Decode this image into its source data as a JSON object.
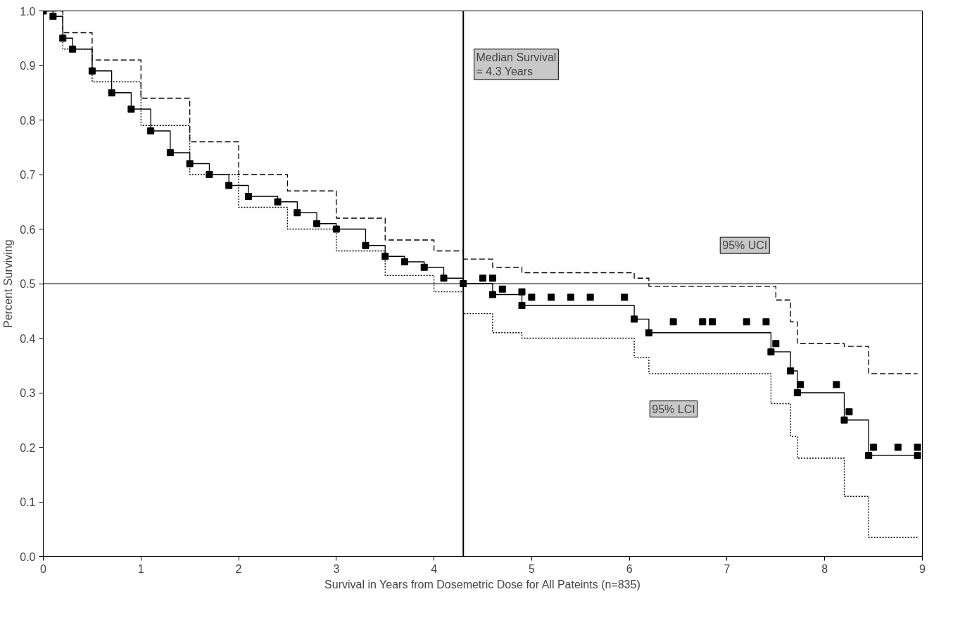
{
  "chart_data": {
    "type": "step",
    "xlabel": "Survival in Years from Dosemetric Dose for All Pateints (n=835)",
    "ylabel": "Percent Surviving",
    "xlim": [
      0,
      9
    ],
    "ylim": [
      0,
      1
    ],
    "xticks": [
      0,
      1,
      2,
      3,
      4,
      5,
      6,
      7,
      8,
      9
    ],
    "yticks": [
      {
        "value": 0,
        "label": "0.0"
      },
      0.1,
      0.2,
      0.3,
      0.4,
      0.5,
      0.6,
      0.7,
      0.8,
      0.9,
      {
        "value": 1,
        "label": "1.0"
      }
    ],
    "grid": false,
    "series": [
      {
        "color": "#000000",
        "marker": "square",
        "line_style": "solid",
        "x": [
          0,
          0.1,
          0.2,
          0.3,
          0.5,
          0.7,
          0.9,
          1.1,
          1.3,
          1.5,
          1.7,
          1.9,
          2.1,
          2.4,
          2.6,
          2.8,
          3.0,
          3.3,
          3.5,
          3.7,
          3.9,
          4.1,
          4.3,
          4.6,
          4.9,
          6.05,
          6.2,
          7.45,
          7.65,
          7.72,
          8.2,
          8.45,
          8.95
        ],
        "values": [
          1.0,
          0.99,
          0.95,
          0.93,
          0.89,
          0.85,
          0.82,
          0.78,
          0.74,
          0.72,
          0.7,
          0.68,
          0.66,
          0.65,
          0.63,
          0.61,
          0.6,
          0.57,
          0.55,
          0.54,
          0.53,
          0.51,
          0.5,
          0.48,
          0.46,
          0.435,
          0.41,
          0.375,
          0.34,
          0.3,
          0.25,
          0.185,
          0.185
        ]
      },
      {
        "type": "scatter",
        "color": "#000000",
        "marker": "square",
        "x": [
          4.5,
          4.6,
          4.7,
          4.9,
          5.0,
          5.2,
          5.4,
          5.6,
          5.95,
          6.45,
          6.75,
          6.85,
          7.2,
          7.4,
          7.5,
          7.75,
          8.12,
          8.25,
          8.5,
          8.75,
          8.95
        ],
        "values": [
          0.51,
          0.51,
          0.49,
          0.485,
          0.475,
          0.475,
          0.475,
          0.475,
          0.475,
          0.43,
          0.43,
          0.43,
          0.43,
          0.43,
          0.39,
          0.315,
          0.315,
          0.265,
          0.2,
          0.2,
          0.2
        ]
      },
      {
        "color": "#000000",
        "marker": "none",
        "line_style": "dashed",
        "x": [
          0,
          0.2,
          0.5,
          1,
          1.5,
          2,
          2.5,
          3,
          3.5,
          4,
          4.3,
          4.6,
          4.9,
          6.05,
          6.2,
          7.5,
          7.65,
          7.72,
          8.2,
          8.45,
          8.95
        ],
        "values": [
          1.0,
          0.96,
          0.91,
          0.84,
          0.76,
          0.7,
          0.67,
          0.62,
          0.58,
          0.56,
          0.545,
          0.53,
          0.52,
          0.51,
          0.495,
          0.47,
          0.43,
          0.39,
          0.385,
          0.335,
          0.335
        ]
      },
      {
        "color": "#000000",
        "marker": "none",
        "line_style": "dotted",
        "x": [
          0,
          0.2,
          0.5,
          1,
          1.5,
          2,
          2.5,
          3,
          3.5,
          4,
          4.3,
          4.6,
          4.9,
          6.05,
          6.2,
          7.45,
          7.65,
          7.72,
          8.2,
          8.45,
          8.95
        ],
        "values": [
          1.0,
          0.93,
          0.87,
          0.79,
          0.7,
          0.64,
          0.6,
          0.56,
          0.515,
          0.485,
          0.445,
          0.41,
          0.4,
          0.365,
          0.335,
          0.28,
          0.22,
          0.18,
          0.11,
          0.035,
          0.035
        ]
      }
    ],
    "ref_lines": [
      {
        "axis": "x",
        "value": 4.3
      },
      {
        "axis": "y",
        "value": 0.5
      }
    ],
    "annotations": [
      "Median Survival\n= 4.3 Years",
      "95% UCI",
      "95% LCI"
    ]
  }
}
